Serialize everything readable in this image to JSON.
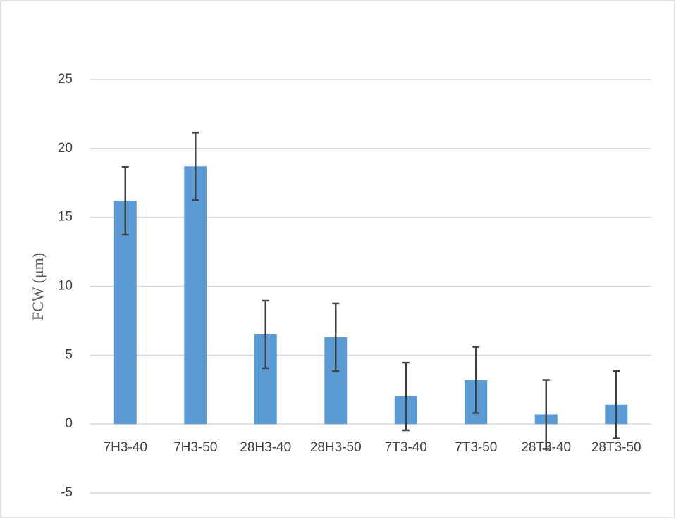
{
  "chart_data": {
    "type": "bar",
    "y_label": "FCW (μm)",
    "categories": [
      "7H3-40",
      "7H3-50",
      "28H3-40",
      "28H3-50",
      "7T3-40",
      "7T3-50",
      "28T3-40",
      "28T3-50"
    ],
    "values": [
      16.2,
      18.7,
      6.5,
      6.3,
      2.0,
      3.2,
      0.7,
      1.4
    ],
    "errors": [
      2.45,
      2.45,
      2.45,
      2.45,
      2.45,
      2.4,
      2.5,
      2.45
    ],
    "color": "#5b9bd5",
    "error_color": "#404040",
    "ylim": [
      -5,
      25
    ],
    "yticks": [
      -5,
      0,
      5,
      10,
      15,
      20,
      25
    ],
    "grid": true
  }
}
